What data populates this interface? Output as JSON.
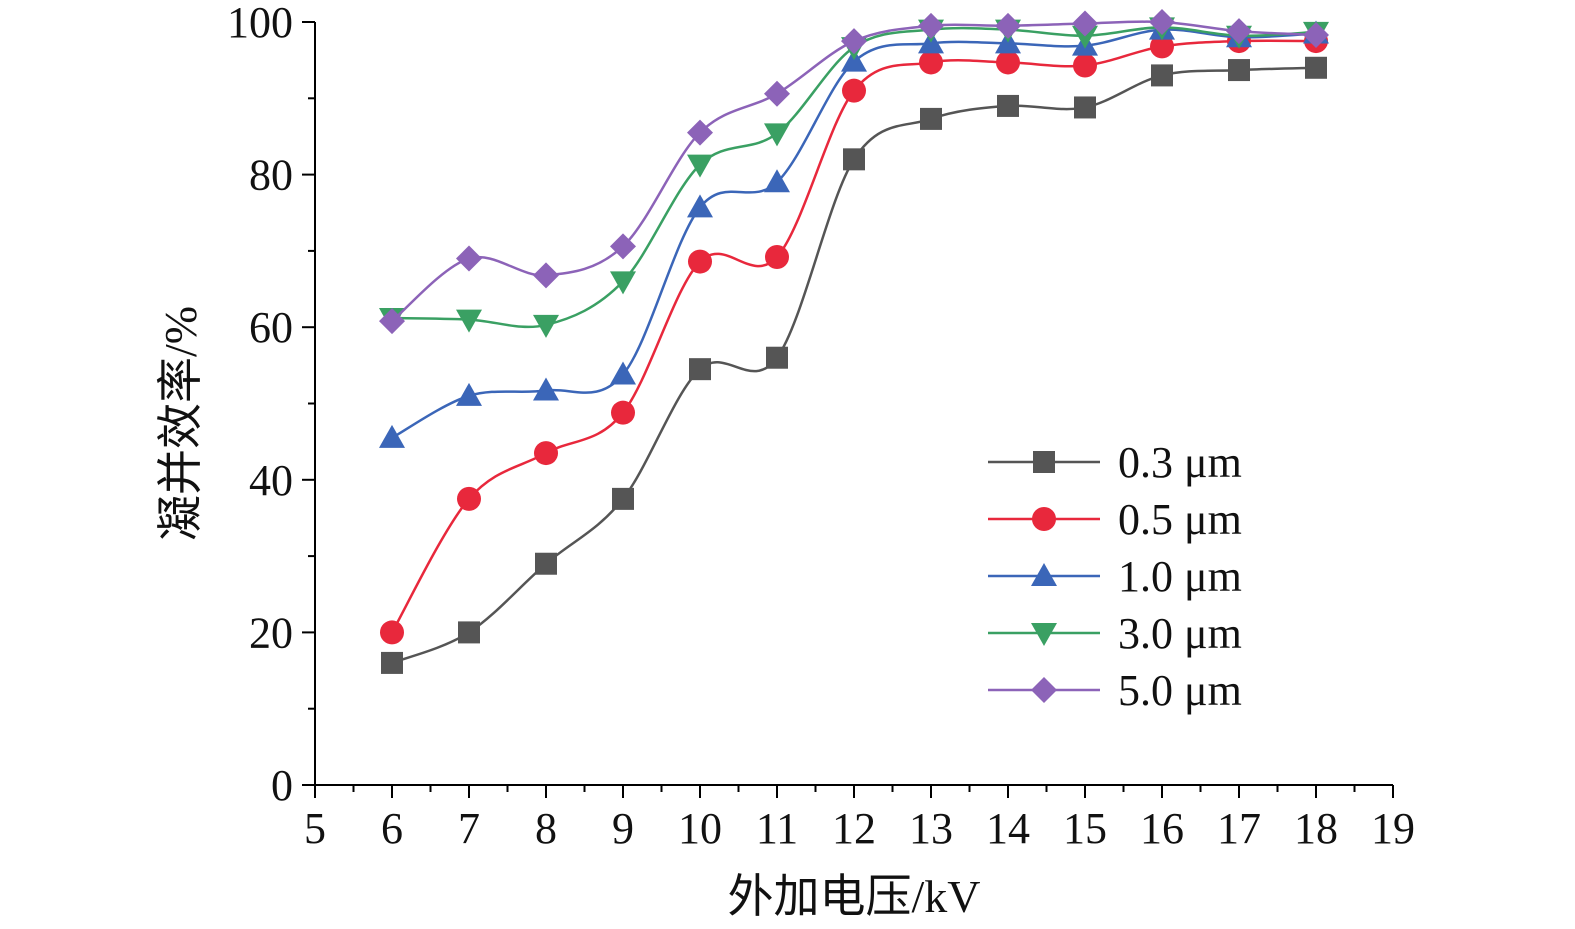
{
  "chart_data": {
    "type": "line",
    "title": "",
    "xlabel": "外加电压/kV",
    "ylabel": "凝并效率/%",
    "xlim": [
      5,
      19
    ],
    "ylim": [
      0,
      100
    ],
    "xticks": [
      "5",
      "6",
      "7",
      "8",
      "9",
      "10",
      "11",
      "12",
      "13",
      "14",
      "15",
      "16",
      "17",
      "18",
      "19"
    ],
    "yticks": [
      "0",
      "20",
      "40",
      "60",
      "80",
      "100"
    ],
    "x": [
      6,
      7,
      8,
      9,
      10,
      11,
      12,
      13,
      14,
      15,
      16,
      17,
      18
    ],
    "grid": false,
    "legend_position": "bottom-right",
    "series": [
      {
        "name": "0.3 μm",
        "color": "#555555",
        "marker": "square",
        "values": [
          16,
          20,
          29,
          37.5,
          54.5,
          56,
          82,
          87.3,
          89,
          88.8,
          93,
          93.7,
          94
        ]
      },
      {
        "name": "0.5 μm",
        "color": "#e8283c",
        "marker": "circle",
        "values": [
          20,
          37.5,
          43.5,
          48.8,
          68.6,
          69.2,
          91,
          94.7,
          94.7,
          94.3,
          96.8,
          97.5,
          97.5
        ]
      },
      {
        "name": "1.0 μm",
        "color": "#3b66b8",
        "marker": "triangle-up",
        "values": [
          45.5,
          51,
          51.7,
          53.8,
          75.7,
          79,
          94.8,
          97.2,
          97.2,
          96.9,
          99,
          98,
          98.5
        ]
      },
      {
        "name": "3.0 μm",
        "color": "#3aa063",
        "marker": "triangle-down",
        "values": [
          61.2,
          61,
          60.3,
          66,
          81.3,
          85.4,
          96.7,
          99,
          99,
          98.2,
          99.3,
          98.2,
          98.7
        ]
      },
      {
        "name": "5.0 μm",
        "color": "#8c63b8",
        "marker": "diamond",
        "values": [
          60.8,
          69,
          66.8,
          70.6,
          85.5,
          90.6,
          97.5,
          99.5,
          99.5,
          99.8,
          100,
          98.8,
          98.3
        ]
      }
    ]
  }
}
